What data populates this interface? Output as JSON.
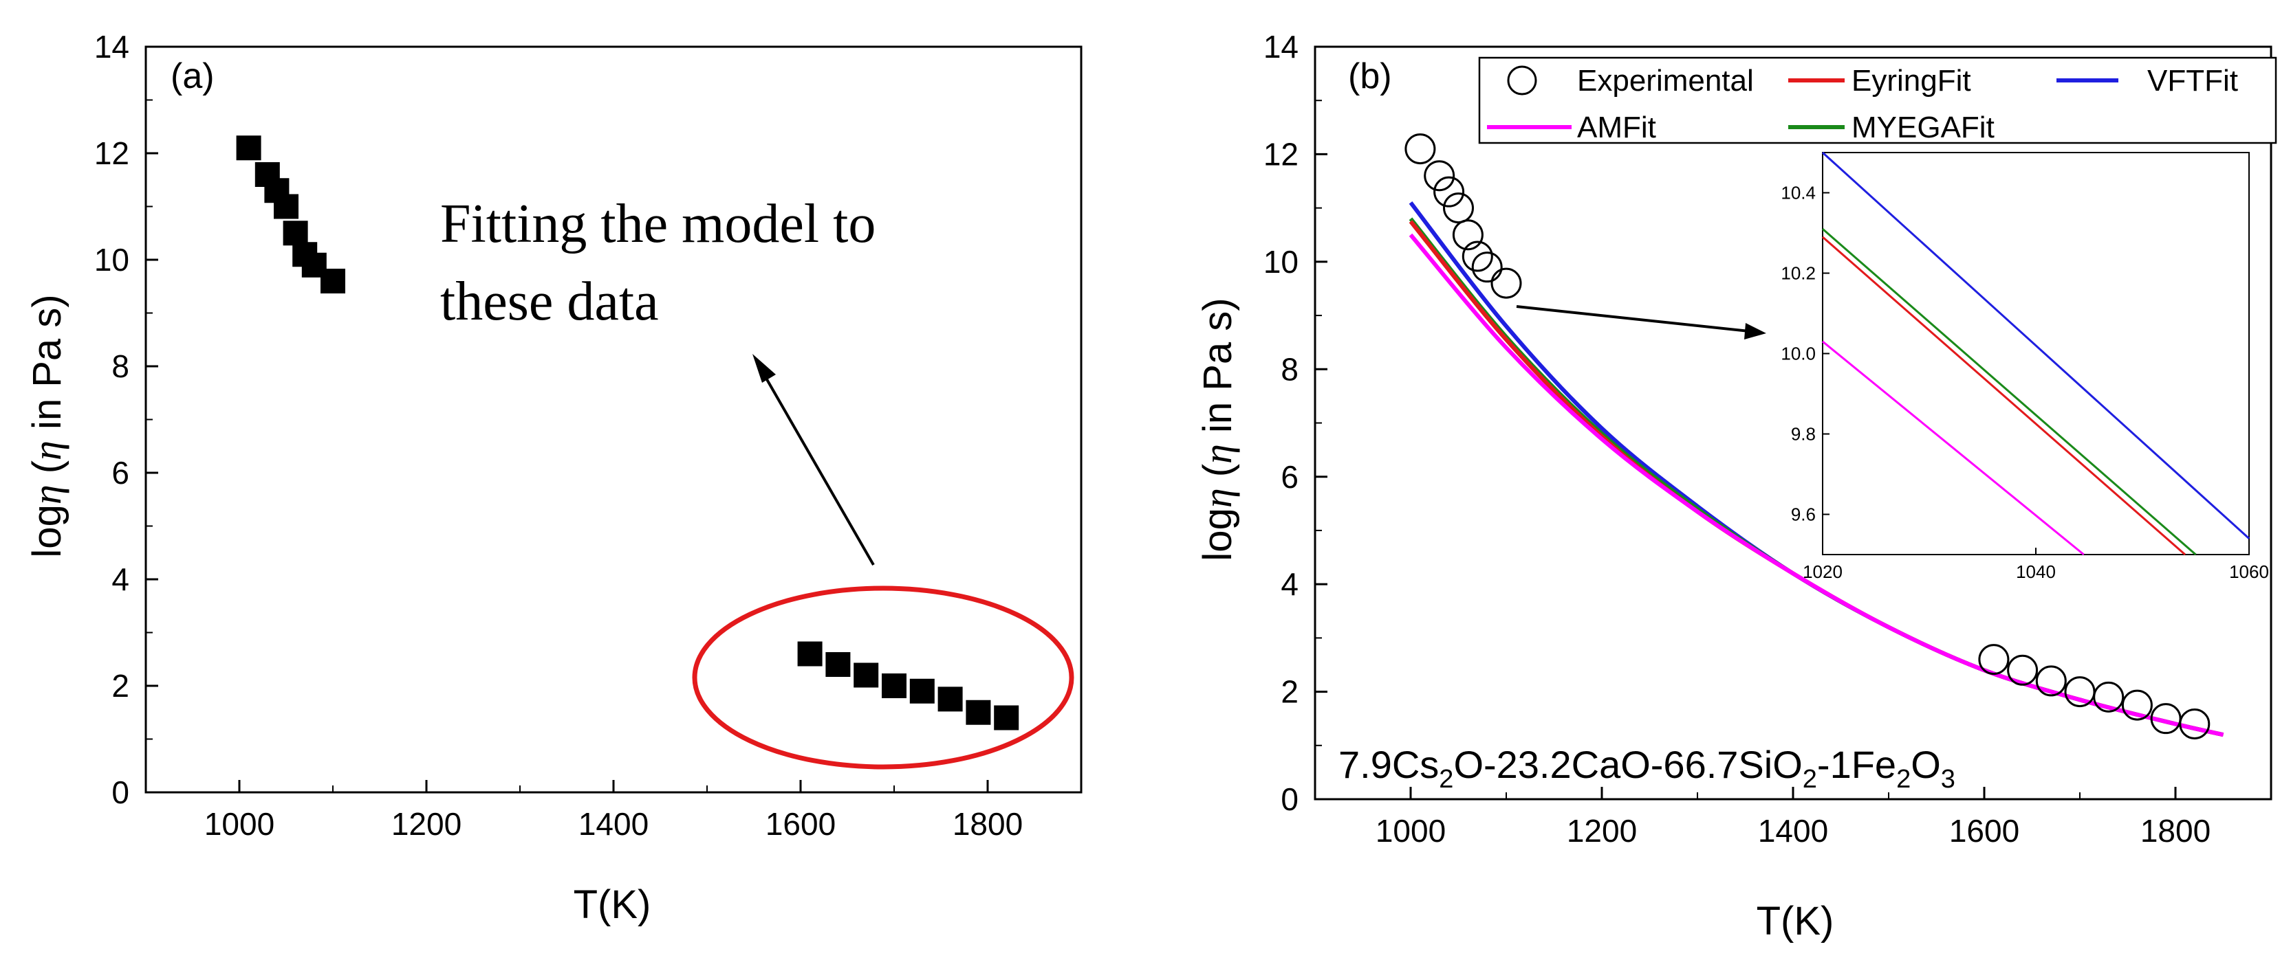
{
  "chart_data": [
    {
      "panel_label": "(a)",
      "type": "scatter",
      "title": "",
      "xlabel": "T(K)",
      "ylabel_prefix": "log",
      "ylabel_symbol": "η",
      "ylabel_suffix": " (",
      "ylabel_symbol2": "η",
      "ylabel_rest": " in Pa s)",
      "xlim": [
        900,
        1900
      ],
      "ylim": [
        0,
        14
      ],
      "xticks": [
        1000,
        1200,
        1400,
        1600,
        1800
      ],
      "yticks": [
        0,
        2,
        4,
        6,
        8,
        10,
        12,
        14
      ],
      "series": [
        {
          "name": "data",
          "marker": "filled-square",
          "color": "#000000",
          "points": [
            [
              1010,
              12.1
            ],
            [
              1030,
              11.6
            ],
            [
              1040,
              11.3
            ],
            [
              1050,
              11.0
            ],
            [
              1060,
              10.5
            ],
            [
              1070,
              10.1
            ],
            [
              1080,
              9.9
            ],
            [
              1100,
              9.6
            ],
            [
              1610,
              2.6
            ],
            [
              1640,
              2.4
            ],
            [
              1670,
              2.2
            ],
            [
              1700,
              2.0
            ],
            [
              1730,
              1.9
            ],
            [
              1760,
              1.75
            ],
            [
              1790,
              1.5
            ],
            [
              1820,
              1.4
            ]
          ]
        }
      ],
      "annotation_text_line1": "Fitting the model to",
      "annotation_text_line2": "these data",
      "ellipse_color": "#e31a1c"
    },
    {
      "panel_label": "(b)",
      "type": "line",
      "xlabel": "T(K)",
      "ylabel_prefix": "log",
      "ylabel_symbol": "η",
      "ylabel_suffix": " (",
      "ylabel_symbol2": "η",
      "ylabel_rest": " in Pa s)",
      "xlim": [
        900,
        1900
      ],
      "ylim": [
        0,
        14
      ],
      "xticks": [
        1000,
        1200,
        1400,
        1600,
        1800
      ],
      "yticks": [
        0,
        2,
        4,
        6,
        8,
        10,
        12,
        14
      ],
      "composition": {
        "p1": "7.9Cs",
        "s1": "2",
        "p2": "O-23.2CaO-66.7SiO",
        "s2": "2",
        "p3": "-1Fe",
        "s3": "2",
        "p4": "O",
        "s4": "3"
      },
      "legend": [
        {
          "label": "Experimental",
          "kind": "circle",
          "color": "#000000"
        },
        {
          "label": "EyringFit",
          "kind": "line",
          "color": "#e31a1c"
        },
        {
          "label": "VFTFit",
          "kind": "line",
          "color": "#1f1fe0"
        },
        {
          "label": "AMFit",
          "kind": "line",
          "color": "#ff00ff"
        },
        {
          "label": "MYEGAFit",
          "kind": "line",
          "color": "#1a8a1a"
        }
      ],
      "experimental": [
        [
          1010,
          12.1
        ],
        [
          1030,
          11.6
        ],
        [
          1040,
          11.3
        ],
        [
          1050,
          11.0
        ],
        [
          1060,
          10.5
        ],
        [
          1070,
          10.1
        ],
        [
          1080,
          9.9
        ],
        [
          1100,
          9.6
        ],
        [
          1610,
          2.6
        ],
        [
          1640,
          2.4
        ],
        [
          1670,
          2.2
        ],
        [
          1700,
          2.0
        ],
        [
          1730,
          1.9
        ],
        [
          1760,
          1.75
        ],
        [
          1790,
          1.5
        ],
        [
          1820,
          1.4
        ]
      ],
      "fits": [
        {
          "name": "VFTFit",
          "color": "#1f1fe0",
          "x": [
            1000,
            1100,
            1200,
            1300,
            1400,
            1500,
            1600,
            1700,
            1800,
            1850
          ],
          "y": [
            11.1,
            8.8,
            6.9,
            5.45,
            4.2,
            3.2,
            2.4,
            1.85,
            1.4,
            1.2
          ]
        },
        {
          "name": "MYEGAFit",
          "color": "#1a8a1a",
          "x": [
            1000,
            1100,
            1200,
            1300,
            1400,
            1500,
            1600,
            1700,
            1800,
            1850
          ],
          "y": [
            10.8,
            8.6,
            6.8,
            5.4,
            4.2,
            3.2,
            2.4,
            1.85,
            1.4,
            1.2
          ]
        },
        {
          "name": "EyringFit",
          "color": "#e31a1c",
          "x": [
            1000,
            1100,
            1200,
            1300,
            1400,
            1500,
            1600,
            1700,
            1800,
            1850
          ],
          "y": [
            10.75,
            8.55,
            6.75,
            5.35,
            4.2,
            3.2,
            2.4,
            1.85,
            1.4,
            1.2
          ]
        },
        {
          "name": "AMFit",
          "color": "#ff00ff",
          "x": [
            1000,
            1100,
            1200,
            1300,
            1400,
            1500,
            1600,
            1700,
            1800,
            1850
          ],
          "y": [
            10.5,
            8.4,
            6.7,
            5.35,
            4.2,
            3.2,
            2.4,
            1.85,
            1.4,
            1.2
          ]
        }
      ],
      "inset": {
        "xlim": [
          1020,
          1060
        ],
        "ylim": [
          9.5,
          10.5
        ],
        "xticks": [
          1020,
          1040,
          1060
        ],
        "yticks": [
          9.6,
          9.8,
          10.0,
          10.2,
          10.4
        ],
        "lines": [
          {
            "name": "VFTFit",
            "color": "#1f1fe0",
            "x": [
              1020,
              1060
            ],
            "y": [
              10.5,
              9.54
            ]
          },
          {
            "name": "MYEGAFit",
            "color": "#1a8a1a",
            "x": [
              1020,
              1055
            ],
            "y": [
              10.31,
              9.5
            ]
          },
          {
            "name": "EyringFit",
            "color": "#e31a1c",
            "x": [
              1020,
              1054
            ],
            "y": [
              10.29,
              9.5
            ]
          },
          {
            "name": "AMFit",
            "color": "#ff00ff",
            "x": [
              1020,
              1044.5
            ],
            "y": [
              10.03,
              9.5
            ]
          }
        ]
      }
    }
  ]
}
